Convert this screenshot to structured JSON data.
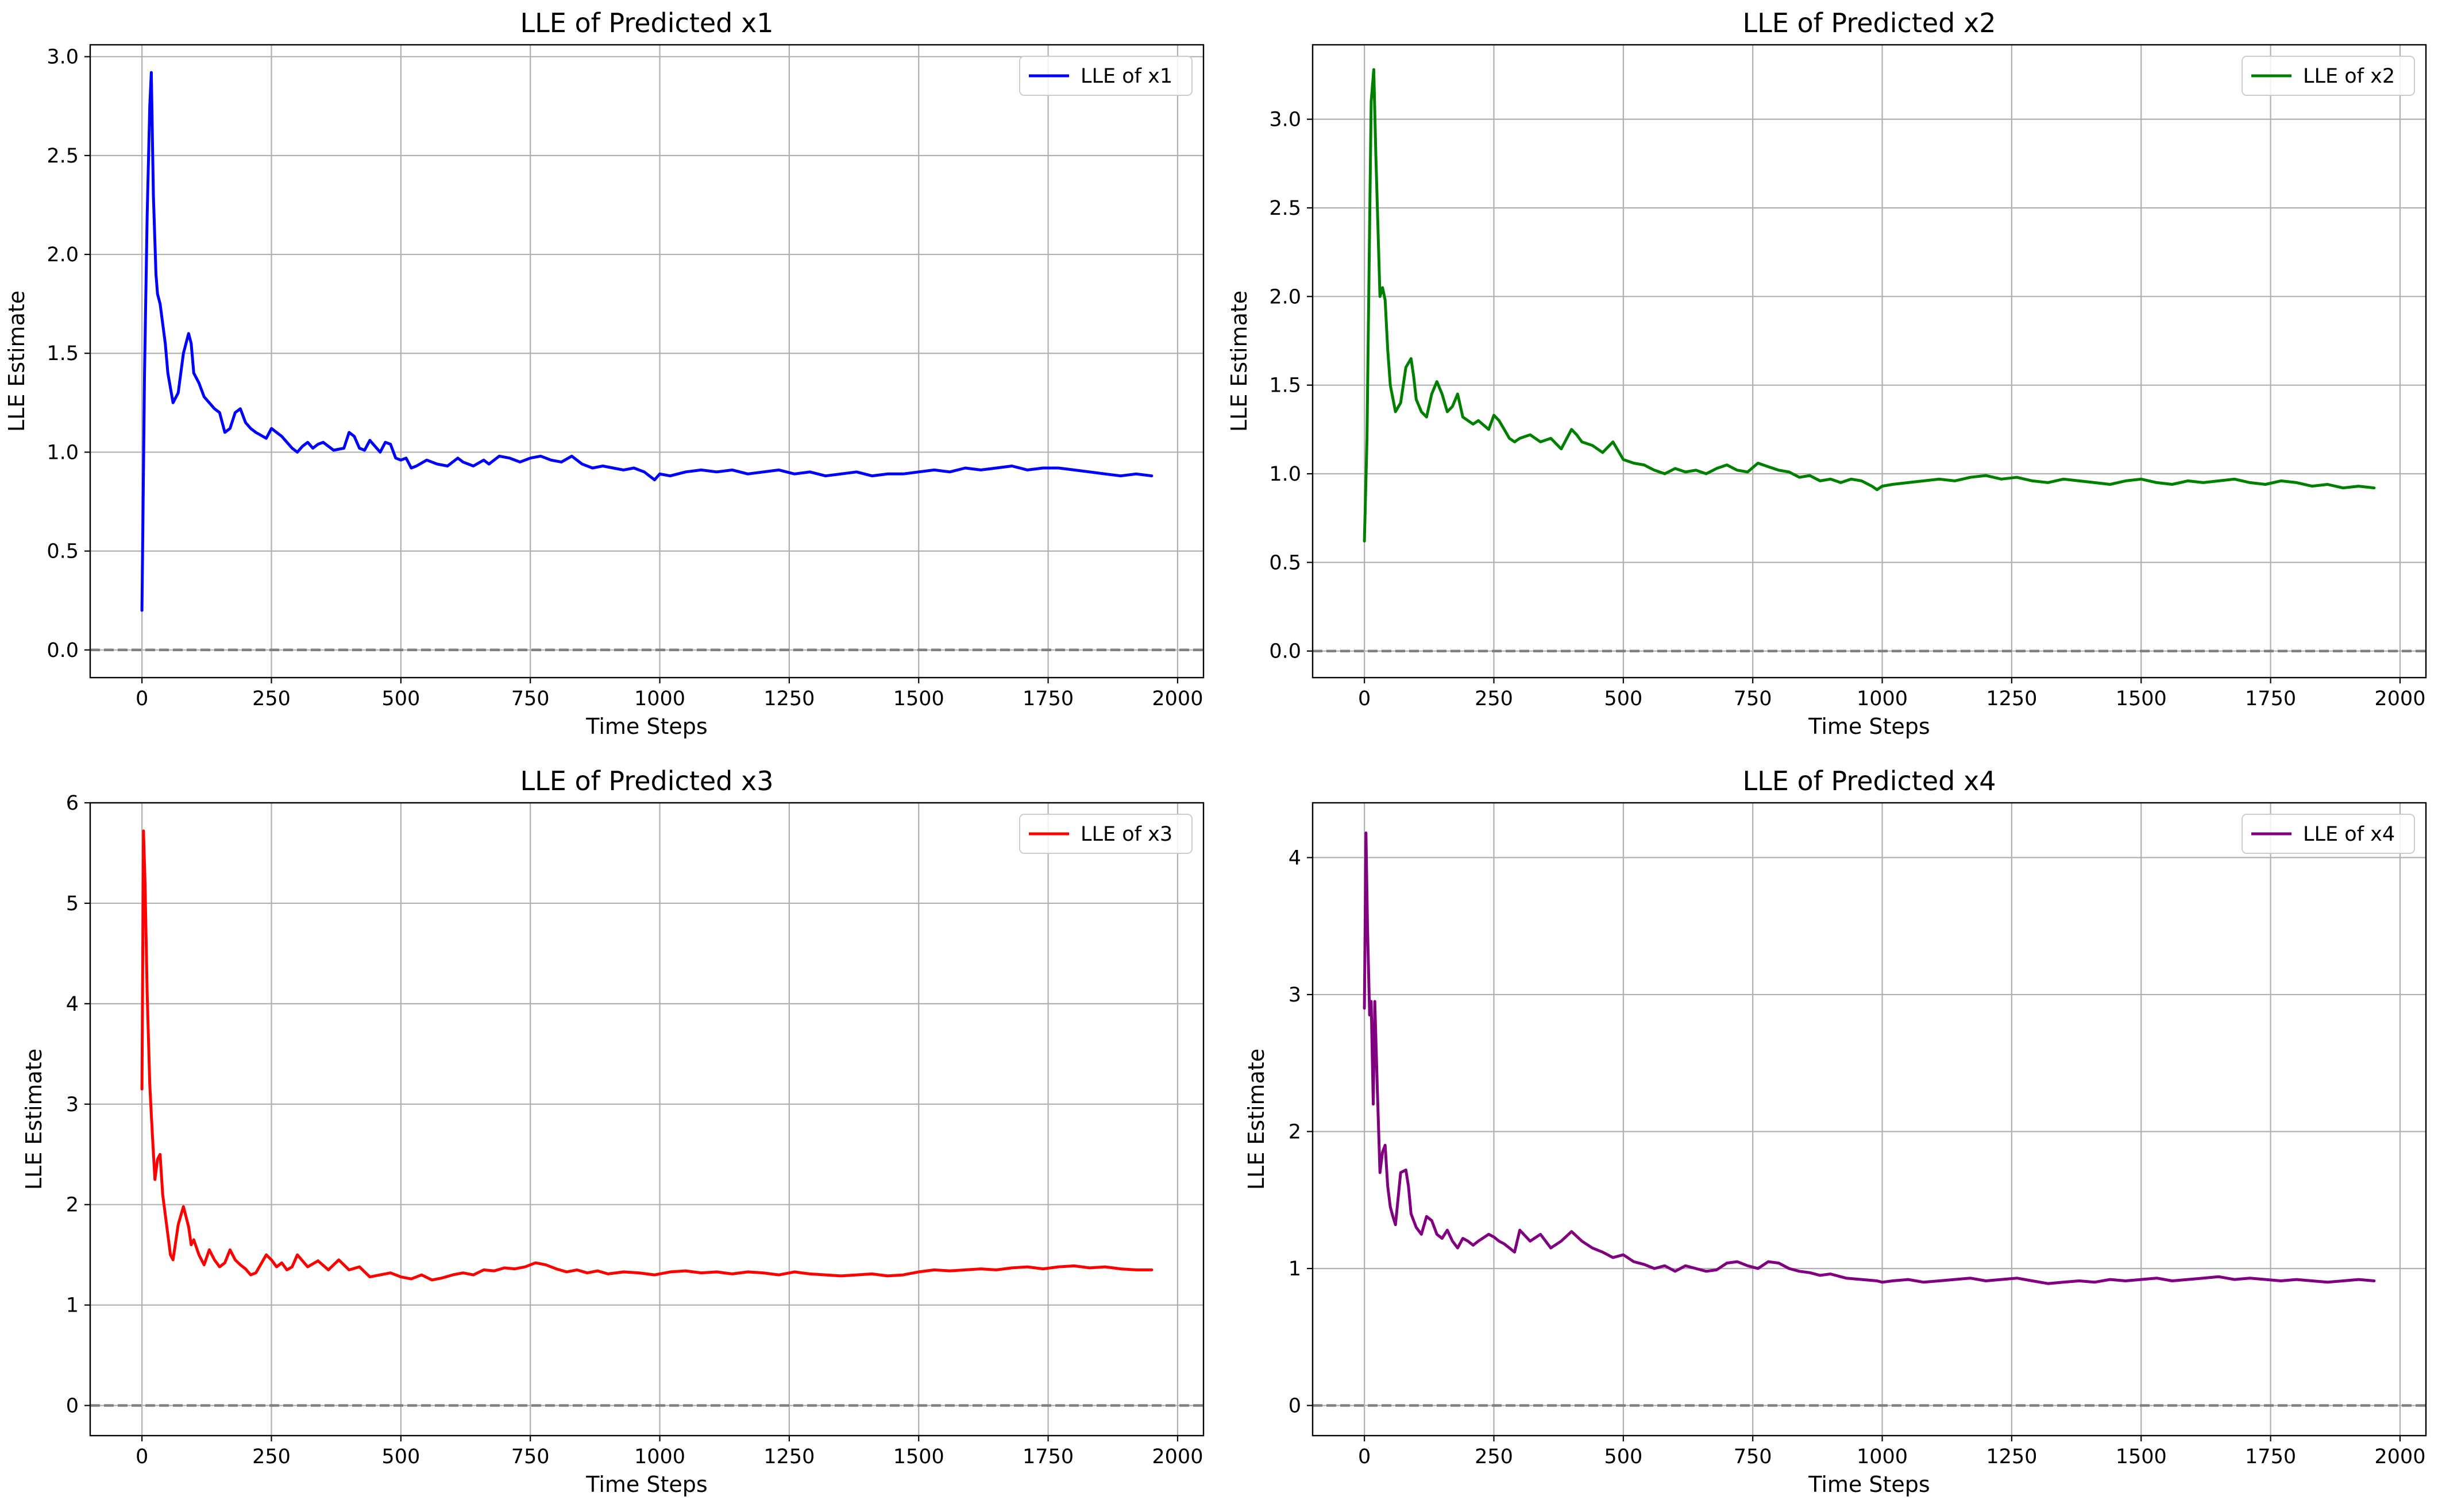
{
  "chart_data": [
    {
      "type": "line",
      "title": "LLE of Predicted x1",
      "xlabel": "Time Steps",
      "ylabel": "LLE Estimate",
      "xlim": [
        -100,
        2050
      ],
      "ylim": [
        -0.14,
        3.06
      ],
      "xticks": [
        0,
        250,
        500,
        750,
        1000,
        1250,
        1500,
        1750,
        2000
      ],
      "yticks": [
        0.0,
        0.5,
        1.0,
        1.5,
        2.0,
        2.5,
        3.0
      ],
      "ytick_labels": [
        "0.0",
        "0.5",
        "1.0",
        "1.5",
        "2.0",
        "2.5",
        "3.0"
      ],
      "xtick_labels": [
        "0",
        "250",
        "500",
        "750",
        "1000",
        "1250",
        "1500",
        "1750",
        "2000"
      ],
      "grid": true,
      "reference_line": {
        "y": 0,
        "style": "dashed",
        "color": "#808080"
      },
      "legend": {
        "position": "top-right",
        "entries": [
          "LLE of x1"
        ]
      },
      "series": [
        {
          "name": "LLE of x1",
          "color": "#0000ff",
          "x": [
            0,
            5,
            10,
            15,
            18,
            22,
            27,
            30,
            35,
            40,
            45,
            50,
            60,
            70,
            80,
            90,
            95,
            100,
            110,
            120,
            130,
            140,
            150,
            160,
            170,
            180,
            190,
            200,
            210,
            220,
            240,
            250,
            260,
            270,
            280,
            290,
            300,
            310,
            320,
            330,
            340,
            350,
            370,
            390,
            400,
            410,
            420,
            430,
            440,
            450,
            460,
            470,
            480,
            490,
            500,
            510,
            520,
            530,
            550,
            570,
            590,
            610,
            620,
            640,
            660,
            670,
            690,
            710,
            730,
            750,
            770,
            790,
            810,
            830,
            850,
            870,
            890,
            910,
            930,
            950,
            970,
            990,
            1000,
            1020,
            1050,
            1080,
            1110,
            1140,
            1170,
            1200,
            1230,
            1260,
            1290,
            1320,
            1350,
            1380,
            1410,
            1440,
            1470,
            1500,
            1530,
            1560,
            1590,
            1620,
            1650,
            1680,
            1710,
            1740,
            1770,
            1800,
            1830,
            1860,
            1890,
            1920,
            1950
          ],
          "values": [
            0.2,
            1.4,
            2.2,
            2.75,
            2.92,
            2.3,
            1.9,
            1.8,
            1.75,
            1.65,
            1.55,
            1.4,
            1.25,
            1.3,
            1.5,
            1.6,
            1.55,
            1.4,
            1.35,
            1.28,
            1.25,
            1.22,
            1.2,
            1.1,
            1.12,
            1.2,
            1.22,
            1.15,
            1.12,
            1.1,
            1.07,
            1.12,
            1.1,
            1.08,
            1.05,
            1.02,
            1.0,
            1.03,
            1.05,
            1.02,
            1.04,
            1.05,
            1.01,
            1.02,
            1.1,
            1.08,
            1.02,
            1.01,
            1.06,
            1.03,
            1.0,
            1.05,
            1.04,
            0.97,
            0.96,
            0.97,
            0.92,
            0.93,
            0.96,
            0.94,
            0.93,
            0.97,
            0.95,
            0.93,
            0.96,
            0.94,
            0.98,
            0.97,
            0.95,
            0.97,
            0.98,
            0.96,
            0.95,
            0.98,
            0.94,
            0.92,
            0.93,
            0.92,
            0.91,
            0.92,
            0.9,
            0.86,
            0.89,
            0.88,
            0.9,
            0.91,
            0.9,
            0.91,
            0.89,
            0.9,
            0.91,
            0.89,
            0.9,
            0.88,
            0.89,
            0.9,
            0.88,
            0.89,
            0.89,
            0.9,
            0.91,
            0.9,
            0.92,
            0.91,
            0.92,
            0.93,
            0.91,
            0.92,
            0.92,
            0.91,
            0.9,
            0.89,
            0.88,
            0.89,
            0.88
          ]
        }
      ]
    },
    {
      "type": "line",
      "title": "LLE of Predicted x2",
      "xlabel": "Time Steps",
      "ylabel": "LLE Estimate",
      "xlim": [
        -100,
        2050
      ],
      "ylim": [
        -0.15,
        3.42
      ],
      "xticks": [
        0,
        250,
        500,
        750,
        1000,
        1250,
        1500,
        1750,
        2000
      ],
      "yticks": [
        0.0,
        0.5,
        1.0,
        1.5,
        2.0,
        2.5,
        3.0
      ],
      "ytick_labels": [
        "0.0",
        "0.5",
        "1.0",
        "1.5",
        "2.0",
        "2.5",
        "3.0"
      ],
      "xtick_labels": [
        "0",
        "250",
        "500",
        "750",
        "1000",
        "1250",
        "1500",
        "1750",
        "2000"
      ],
      "grid": true,
      "reference_line": {
        "y": 0,
        "style": "dashed",
        "color": "#808080"
      },
      "legend": {
        "position": "top-right",
        "entries": [
          "LLE of x2"
        ]
      },
      "series": [
        {
          "name": "LLE of x2",
          "color": "#008000",
          "x": [
            0,
            5,
            10,
            13,
            18,
            22,
            27,
            30,
            35,
            40,
            45,
            50,
            60,
            70,
            80,
            90,
            95,
            100,
            110,
            120,
            130,
            140,
            150,
            160,
            170,
            180,
            190,
            200,
            210,
            220,
            240,
            250,
            260,
            270,
            280,
            290,
            300,
            320,
            340,
            360,
            380,
            400,
            410,
            420,
            440,
            460,
            480,
            500,
            520,
            540,
            560,
            580,
            600,
            620,
            640,
            660,
            680,
            700,
            720,
            740,
            760,
            780,
            800,
            820,
            840,
            860,
            880,
            900,
            920,
            940,
            960,
            980,
            990,
            1000,
            1020,
            1050,
            1080,
            1110,
            1140,
            1170,
            1200,
            1230,
            1260,
            1290,
            1320,
            1350,
            1380,
            1410,
            1440,
            1470,
            1500,
            1530,
            1560,
            1590,
            1620,
            1650,
            1680,
            1710,
            1740,
            1770,
            1800,
            1830,
            1860,
            1890,
            1920,
            1950
          ],
          "values": [
            0.62,
            1.2,
            2.4,
            3.1,
            3.28,
            2.8,
            2.3,
            2.0,
            2.05,
            1.98,
            1.7,
            1.5,
            1.35,
            1.4,
            1.6,
            1.65,
            1.55,
            1.42,
            1.35,
            1.32,
            1.45,
            1.52,
            1.45,
            1.35,
            1.38,
            1.45,
            1.32,
            1.3,
            1.28,
            1.3,
            1.25,
            1.33,
            1.3,
            1.25,
            1.2,
            1.18,
            1.2,
            1.22,
            1.18,
            1.2,
            1.14,
            1.25,
            1.22,
            1.18,
            1.16,
            1.12,
            1.18,
            1.08,
            1.06,
            1.05,
            1.02,
            1.0,
            1.03,
            1.01,
            1.02,
            1.0,
            1.03,
            1.05,
            1.02,
            1.01,
            1.06,
            1.04,
            1.02,
            1.01,
            0.98,
            0.99,
            0.96,
            0.97,
            0.95,
            0.97,
            0.96,
            0.93,
            0.91,
            0.93,
            0.94,
            0.95,
            0.96,
            0.97,
            0.96,
            0.98,
            0.99,
            0.97,
            0.98,
            0.96,
            0.95,
            0.97,
            0.96,
            0.95,
            0.94,
            0.96,
            0.97,
            0.95,
            0.94,
            0.96,
            0.95,
            0.96,
            0.97,
            0.95,
            0.94,
            0.96,
            0.95,
            0.93,
            0.94,
            0.92,
            0.93,
            0.92
          ]
        }
      ]
    },
    {
      "type": "line",
      "title": "LLE of Predicted x3",
      "xlabel": "Time Steps",
      "ylabel": "LLE Estimate",
      "xlim": [
        -100,
        2050
      ],
      "ylim": [
        -0.3,
        6.0
      ],
      "xticks": [
        0,
        250,
        500,
        750,
        1000,
        1250,
        1500,
        1750,
        2000
      ],
      "yticks": [
        0,
        1,
        2,
        3,
        4,
        5,
        6
      ],
      "ytick_labels": [
        "0",
        "1",
        "2",
        "3",
        "4",
        "5",
        "6"
      ],
      "xtick_labels": [
        "0",
        "250",
        "500",
        "750",
        "1000",
        "1250",
        "1500",
        "1750",
        "2000"
      ],
      "grid": true,
      "reference_line": {
        "y": 0,
        "style": "dashed",
        "color": "#808080"
      },
      "legend": {
        "position": "top-right",
        "entries": [
          "LLE of x3"
        ]
      },
      "series": [
        {
          "name": "LLE of x3",
          "color": "#ff0000",
          "x": [
            0,
            3,
            6,
            10,
            15,
            20,
            25,
            30,
            35,
            40,
            45,
            50,
            55,
            60,
            70,
            80,
            90,
            95,
            100,
            110,
            120,
            130,
            140,
            150,
            160,
            170,
            180,
            190,
            200,
            210,
            220,
            240,
            250,
            260,
            270,
            280,
            290,
            300,
            320,
            340,
            360,
            380,
            400,
            420,
            440,
            460,
            480,
            500,
            520,
            540,
            560,
            580,
            600,
            620,
            640,
            660,
            680,
            700,
            720,
            740,
            760,
            780,
            800,
            820,
            840,
            860,
            880,
            900,
            930,
            960,
            990,
            1020,
            1050,
            1080,
            1110,
            1140,
            1170,
            1200,
            1230,
            1260,
            1290,
            1320,
            1350,
            1380,
            1410,
            1440,
            1470,
            1500,
            1530,
            1560,
            1590,
            1620,
            1650,
            1680,
            1710,
            1740,
            1770,
            1800,
            1830,
            1860,
            1890,
            1920,
            1950
          ],
          "values": [
            3.15,
            5.72,
            5.2,
            4.1,
            3.2,
            2.7,
            2.25,
            2.45,
            2.5,
            2.1,
            1.9,
            1.7,
            1.5,
            1.45,
            1.8,
            1.98,
            1.78,
            1.6,
            1.65,
            1.5,
            1.4,
            1.55,
            1.45,
            1.38,
            1.42,
            1.55,
            1.45,
            1.4,
            1.36,
            1.3,
            1.32,
            1.5,
            1.45,
            1.38,
            1.42,
            1.35,
            1.38,
            1.5,
            1.38,
            1.44,
            1.35,
            1.45,
            1.35,
            1.38,
            1.28,
            1.3,
            1.32,
            1.28,
            1.26,
            1.3,
            1.25,
            1.27,
            1.3,
            1.32,
            1.3,
            1.35,
            1.34,
            1.37,
            1.36,
            1.38,
            1.42,
            1.4,
            1.36,
            1.33,
            1.35,
            1.32,
            1.34,
            1.31,
            1.33,
            1.32,
            1.3,
            1.33,
            1.34,
            1.32,
            1.33,
            1.31,
            1.33,
            1.32,
            1.3,
            1.33,
            1.31,
            1.3,
            1.29,
            1.3,
            1.31,
            1.29,
            1.3,
            1.33,
            1.35,
            1.34,
            1.35,
            1.36,
            1.35,
            1.37,
            1.38,
            1.36,
            1.38,
            1.39,
            1.37,
            1.38,
            1.36,
            1.35,
            1.35
          ]
        }
      ]
    },
    {
      "type": "line",
      "title": "LLE of Predicted x4",
      "xlabel": "Time Steps",
      "ylabel": "LLE Estimate",
      "xlim": [
        -100,
        2050
      ],
      "ylim": [
        -0.22,
        4.4
      ],
      "xticks": [
        0,
        250,
        500,
        750,
        1000,
        1250,
        1500,
        1750,
        2000
      ],
      "yticks": [
        0,
        1,
        2,
        3,
        4
      ],
      "ytick_labels": [
        "0",
        "1",
        "2",
        "3",
        "4"
      ],
      "xtick_labels": [
        "0",
        "250",
        "500",
        "750",
        "1000",
        "1250",
        "1500",
        "1750",
        "2000"
      ],
      "grid": true,
      "reference_line": {
        "y": 0,
        "style": "dashed",
        "color": "#808080"
      },
      "legend": {
        "position": "top-right",
        "entries": [
          "LLE of x4"
        ]
      },
      "series": [
        {
          "name": "LLE of x4",
          "color": "#800080",
          "x": [
            0,
            3,
            6,
            10,
            13,
            17,
            20,
            25,
            30,
            35,
            40,
            45,
            50,
            55,
            60,
            70,
            80,
            85,
            90,
            100,
            110,
            120,
            130,
            140,
            150,
            160,
            170,
            180,
            190,
            200,
            210,
            220,
            240,
            250,
            260,
            270,
            280,
            290,
            300,
            320,
            340,
            360,
            380,
            400,
            420,
            440,
            460,
            480,
            500,
            520,
            540,
            560,
            580,
            600,
            620,
            640,
            660,
            680,
            700,
            720,
            740,
            760,
            780,
            800,
            820,
            840,
            860,
            880,
            900,
            930,
            960,
            990,
            1000,
            1020,
            1050,
            1080,
            1110,
            1140,
            1170,
            1200,
            1230,
            1260,
            1290,
            1320,
            1350,
            1380,
            1410,
            1440,
            1470,
            1500,
            1530,
            1560,
            1590,
            1620,
            1650,
            1680,
            1710,
            1740,
            1770,
            1800,
            1830,
            1860,
            1890,
            1920,
            1950
          ],
          "values": [
            2.9,
            4.18,
            3.5,
            2.85,
            2.95,
            2.2,
            2.95,
            2.3,
            1.7,
            1.85,
            1.9,
            1.6,
            1.45,
            1.38,
            1.32,
            1.7,
            1.72,
            1.6,
            1.4,
            1.3,
            1.25,
            1.38,
            1.35,
            1.25,
            1.22,
            1.28,
            1.2,
            1.15,
            1.22,
            1.2,
            1.17,
            1.2,
            1.25,
            1.23,
            1.2,
            1.18,
            1.15,
            1.12,
            1.28,
            1.2,
            1.25,
            1.15,
            1.2,
            1.27,
            1.2,
            1.15,
            1.12,
            1.08,
            1.1,
            1.05,
            1.03,
            1.0,
            1.02,
            0.98,
            1.02,
            1.0,
            0.98,
            0.99,
            1.04,
            1.05,
            1.02,
            1.0,
            1.05,
            1.04,
            1.0,
            0.98,
            0.97,
            0.95,
            0.96,
            0.93,
            0.92,
            0.91,
            0.9,
            0.91,
            0.92,
            0.9,
            0.91,
            0.92,
            0.93,
            0.91,
            0.92,
            0.93,
            0.91,
            0.89,
            0.9,
            0.91,
            0.9,
            0.92,
            0.91,
            0.92,
            0.93,
            0.91,
            0.92,
            0.93,
            0.94,
            0.92,
            0.93,
            0.92,
            0.91,
            0.92,
            0.91,
            0.9,
            0.91,
            0.92,
            0.91
          ]
        }
      ]
    }
  ]
}
